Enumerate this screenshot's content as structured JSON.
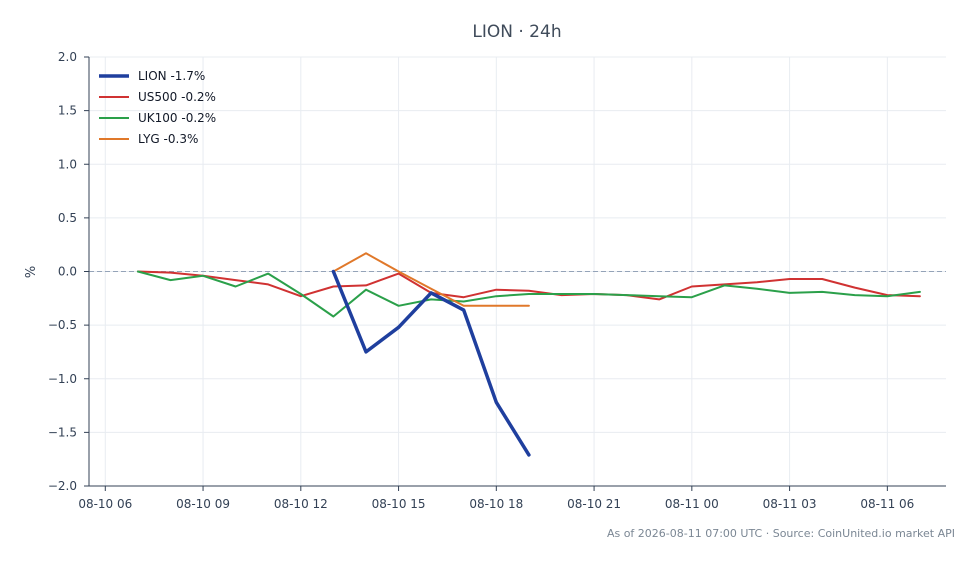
{
  "chart_data": {
    "type": "line",
    "title": "LION · 24h",
    "ylabel": "%",
    "ylim": [
      -2.0,
      2.0
    ],
    "xlim_hours": [
      5.5,
      31.8
    ],
    "yticks": [
      "2.0",
      "1.5",
      "1.0",
      "0.5",
      "0.0",
      "−0.5",
      "−1.0",
      "−1.5",
      "−2.0"
    ],
    "ytick_values": [
      2.0,
      1.5,
      1.0,
      0.5,
      0.0,
      -0.5,
      -1.0,
      -1.5,
      -2.0
    ],
    "xticks": [
      "08-10 06",
      "08-10 09",
      "08-10 12",
      "08-10 15",
      "08-10 18",
      "08-10 21",
      "08-11 00",
      "08-11 03",
      "08-11 06"
    ],
    "xtick_hours": [
      6,
      9,
      12,
      15,
      18,
      21,
      24,
      27,
      30
    ],
    "grid": true,
    "legend_position": "top-left",
    "zero_line": true,
    "series": [
      {
        "name": "LION -1.7%",
        "color": "#1f3f9e",
        "emphasis": true,
        "points": [
          [
            13,
            0.0
          ],
          [
            14,
            -0.75
          ],
          [
            15,
            -0.52
          ],
          [
            16,
            -0.2
          ],
          [
            17,
            -0.36
          ],
          [
            18,
            -1.22
          ],
          [
            19,
            -1.71
          ]
        ]
      },
      {
        "name": "US500 -0.2%",
        "color": "#d03232",
        "points": [
          [
            7,
            0.0
          ],
          [
            8,
            -0.01
          ],
          [
            9,
            -0.04
          ],
          [
            10,
            -0.08
          ],
          [
            11,
            -0.12
          ],
          [
            12,
            -0.23
          ],
          [
            13,
            -0.14
          ],
          [
            14,
            -0.13
          ],
          [
            15,
            -0.02
          ],
          [
            16,
            -0.2
          ],
          [
            17,
            -0.24
          ],
          [
            18,
            -0.17
          ],
          [
            19,
            -0.18
          ],
          [
            20,
            -0.22
          ],
          [
            21,
            -0.21
          ],
          [
            22,
            -0.22
          ],
          [
            23,
            -0.26
          ],
          [
            24,
            -0.14
          ],
          [
            25,
            -0.12
          ],
          [
            26,
            -0.1
          ],
          [
            27,
            -0.07
          ],
          [
            28,
            -0.07
          ],
          [
            29,
            -0.15
          ],
          [
            30,
            -0.22
          ],
          [
            31,
            -0.23
          ]
        ]
      },
      {
        "name": "UK100 -0.2%",
        "color": "#2ba04a",
        "points": [
          [
            7,
            0.0
          ],
          [
            8,
            -0.08
          ],
          [
            9,
            -0.04
          ],
          [
            10,
            -0.14
          ],
          [
            11,
            -0.02
          ],
          [
            12,
            -0.21
          ],
          [
            13,
            -0.42
          ],
          [
            14,
            -0.17
          ],
          [
            15,
            -0.32
          ],
          [
            16,
            -0.26
          ],
          [
            17,
            -0.28
          ],
          [
            18,
            -0.23
          ],
          [
            19,
            -0.21
          ],
          [
            20,
            -0.21
          ],
          [
            21,
            -0.21
          ],
          [
            22,
            -0.22
          ],
          [
            23,
            -0.23
          ],
          [
            24,
            -0.24
          ],
          [
            25,
            -0.13
          ],
          [
            26,
            -0.16
          ],
          [
            27,
            -0.2
          ],
          [
            28,
            -0.19
          ],
          [
            29,
            -0.22
          ],
          [
            30,
            -0.23
          ],
          [
            31,
            -0.19
          ]
        ]
      },
      {
        "name": "LYG -0.3%",
        "color": "#e0782a",
        "points": [
          [
            13,
            0.0
          ],
          [
            14,
            0.17
          ],
          [
            15,
            0.0
          ],
          [
            16,
            -0.16
          ],
          [
            17,
            -0.32
          ],
          [
            18,
            -0.32
          ],
          [
            19,
            -0.32
          ]
        ]
      }
    ]
  },
  "footer": {
    "text": "As of 2026-08-11 07:00 UTC · Source: CoinUnited.io market API"
  }
}
